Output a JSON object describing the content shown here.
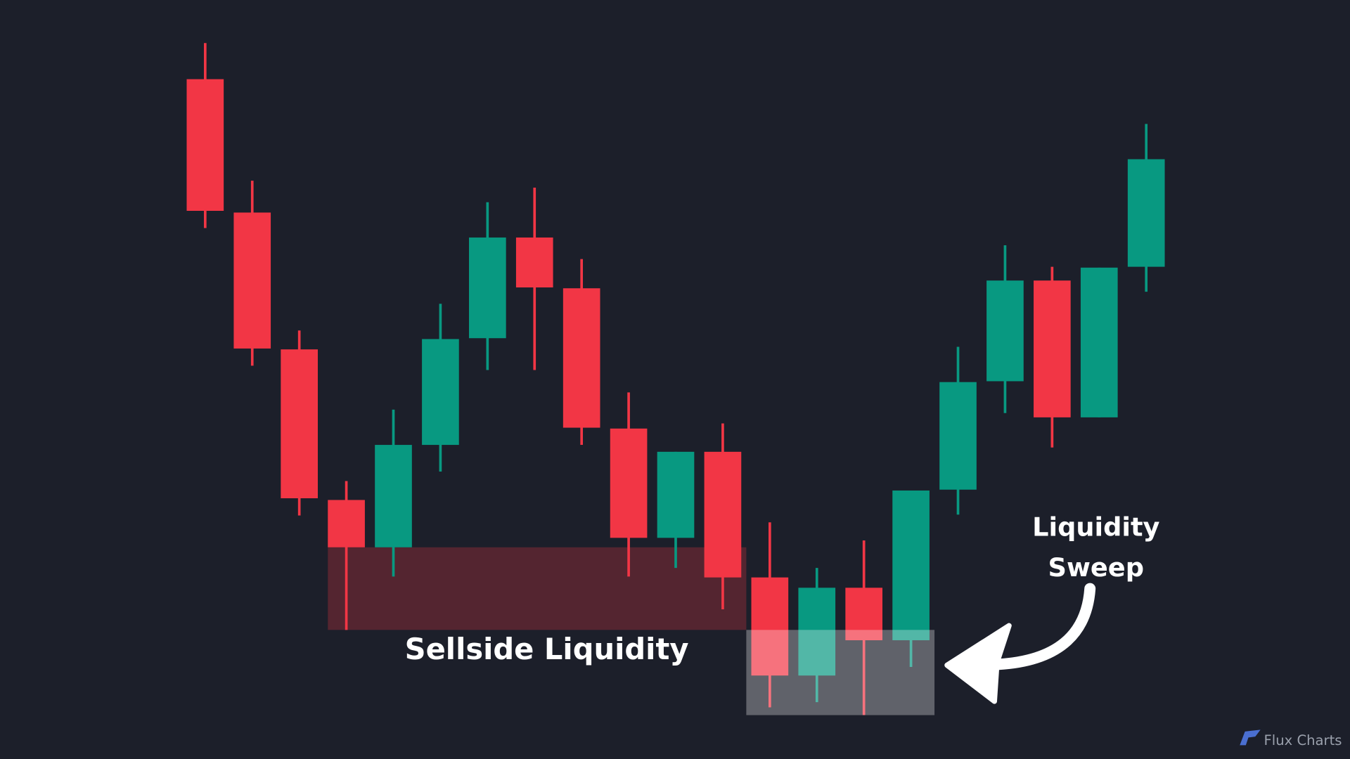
{
  "chart_data": {
    "type": "candlestick",
    "up_color": "#089981",
    "down_color": "#f23645",
    "open": [
      790,
      635,
      476,
      301,
      246,
      365,
      489,
      606,
      547,
      384,
      257,
      357,
      211,
      97,
      199,
      138,
      313,
      439,
      556,
      397,
      572
    ],
    "high": [
      832,
      672,
      498,
      323,
      406,
      529,
      647,
      664,
      581,
      426,
      357,
      390,
      275,
      222,
      254,
      312,
      479,
      597,
      572,
      571,
      738
    ],
    "low": [
      617,
      457,
      283,
      150,
      212,
      334,
      452,
      452,
      365,
      212,
      222,
      174,
      60,
      66,
      51,
      107,
      284,
      402,
      362,
      397,
      543
    ],
    "close": [
      637,
      477,
      303,
      246,
      365,
      488,
      606,
      548,
      385,
      257,
      357,
      211,
      97,
      199,
      138,
      312,
      438,
      556,
      397,
      571,
      697
    ],
    "ylim": [
      0,
      882
    ],
    "zone_label": "Sellside Liquidity",
    "sweep_label": [
      "Liquidity",
      "Sweep"
    ],
    "watermark": "Flux Charts"
  }
}
